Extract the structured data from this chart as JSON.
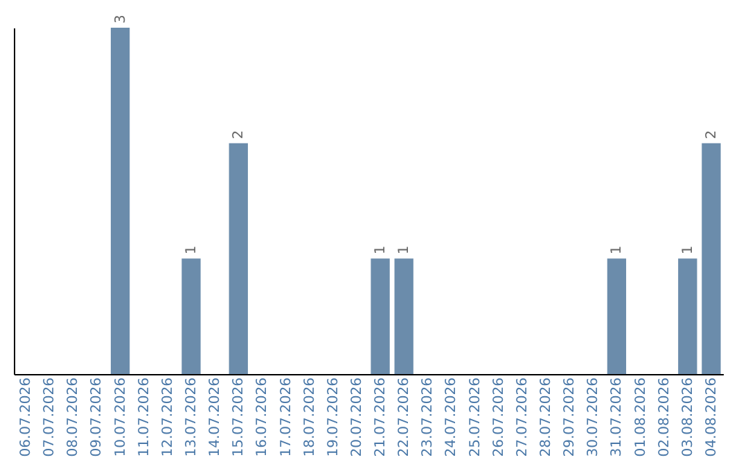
{
  "chart_data": {
    "type": "bar",
    "categories": [
      "06.07.2026",
      "07.07.2026",
      "08.07.2026",
      "09.07.2026",
      "10.07.2026",
      "11.07.2026",
      "12.07.2026",
      "13.07.2026",
      "14.07.2026",
      "15.07.2026",
      "16.07.2026",
      "17.07.2026",
      "18.07.2026",
      "19.07.2026",
      "20.07.2026",
      "21.07.2026",
      "22.07.2026",
      "23.07.2026",
      "24.07.2026",
      "25.07.2026",
      "26.07.2026",
      "27.07.2026",
      "28.07.2026",
      "29.07.2026",
      "30.07.2026",
      "31.07.2026",
      "01.08.2026",
      "02.08.2026",
      "03.08.2026",
      "04.08.2026"
    ],
    "values": [
      0,
      0,
      0,
      0,
      3,
      0,
      0,
      1,
      0,
      2,
      0,
      0,
      0,
      0,
      0,
      1,
      1,
      0,
      0,
      0,
      0,
      0,
      0,
      0,
      0,
      1,
      0,
      0,
      1,
      2
    ],
    "value_labels": [
      null,
      null,
      null,
      null,
      "3",
      null,
      null,
      "1",
      null,
      "2",
      null,
      null,
      null,
      null,
      null,
      "1",
      "1",
      null,
      null,
      null,
      null,
      null,
      null,
      null,
      null,
      "1",
      null,
      null,
      "1",
      "2"
    ],
    "color": "#6b8cab",
    "ylim": [
      0,
      3
    ],
    "tick_labels": "x",
    "grid": false
  }
}
